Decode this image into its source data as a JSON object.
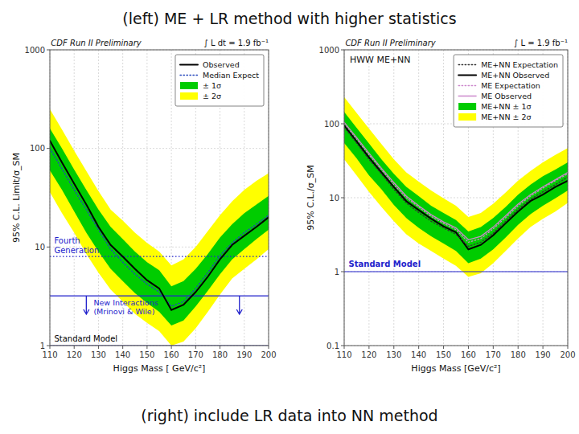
{
  "chart_data": [
    {
      "type": "line",
      "title": "(left) ME + LR method with higher statistics",
      "xlabel": "Higgs Mass [ GeV/c²]",
      "ylabel": "95% C.L. Limit/σ_SM",
      "x": [
        110,
        115,
        120,
        125,
        130,
        135,
        140,
        145,
        150,
        155,
        160,
        165,
        170,
        175,
        180,
        185,
        190,
        195,
        200
      ],
      "series": [
        {
          "name": "Observed",
          "type": "line",
          "color": "#000000",
          "line_style": "solid",
          "values": [
            120,
            72,
            44,
            27,
            16,
            10.5,
            8.0,
            6.0,
            4.6,
            3.8,
            2.3,
            2.6,
            3.5,
            5.0,
            7.5,
            10.5,
            13,
            16,
            20
          ]
        },
        {
          "name": "Median Expect",
          "type": "line",
          "color": "#2244bb",
          "line_style": "dotted",
          "values": [
            100,
            62,
            38,
            24,
            15,
            9.5,
            7.0,
            5.3,
            4.2,
            3.5,
            2.5,
            2.8,
            3.8,
            5.5,
            8.2,
            11,
            14,
            17,
            21
          ]
        },
        {
          "name": "± 1σ",
          "type": "band",
          "color": "#00cc00",
          "upper": [
            160,
            100,
            61,
            38,
            24,
            16,
            12,
            9,
            7,
            5.8,
            4.0,
            4.5,
            6,
            8.5,
            12.5,
            17,
            22,
            27,
            33
          ],
          "lower": [
            60,
            38,
            23,
            14,
            9,
            6,
            4.5,
            3.4,
            2.7,
            2.2,
            1.6,
            1.8,
            2.5,
            3.6,
            5.3,
            7.5,
            9.5,
            12,
            15
          ]
        },
        {
          "name": "± 2σ",
          "type": "band",
          "color": "#ffff00",
          "upper": [
            250,
            155,
            95,
            59,
            37,
            24,
            18.5,
            14,
            11,
            9,
            6.5,
            7.5,
            10,
            14.5,
            21,
            29,
            38,
            47,
            56
          ],
          "lower": [
            36,
            22,
            14,
            8.5,
            5.5,
            3.7,
            2.8,
            2.1,
            1.7,
            1.4,
            1.0,
            1.1,
            1.5,
            2.2,
            3.3,
            4.8,
            6,
            7.5,
            9.5
          ]
        }
      ],
      "reference_lines": [
        {
          "y": 8.0,
          "color": "#2222cc",
          "line_style": "dotted"
        },
        {
          "y": 3.2,
          "color": "#2222cc",
          "line_style": "solid"
        },
        {
          "y": 1.0,
          "color": "#222288",
          "line_style": "solid"
        }
      ],
      "arrows": [
        {
          "x": 125,
          "y_from": 3.2,
          "y_to": 2.08,
          "color": "#2222cc"
        },
        {
          "x": 188,
          "y_from": 3.2,
          "y_to": 2.08,
          "color": "#2222cc"
        }
      ],
      "annotations": [
        {
          "text": "CDF Run II Preliminary"
        },
        {
          "text": "∫ L dt = 1.9 fb⁻¹"
        },
        {
          "text": "Fourth\nGeneration",
          "color": "#2222cc"
        },
        {
          "text": "New Interactions\n(Mrinovi & Wile)",
          "color": "#2222cc"
        },
        {
          "text": "Standard Model",
          "color": "#000000"
        }
      ],
      "xlim": [
        110,
        200
      ],
      "ylim": [
        1,
        1000
      ],
      "xticks": [
        110,
        120,
        130,
        140,
        150,
        160,
        170,
        180,
        190,
        200
      ],
      "yticks": [
        1,
        10,
        100,
        1000
      ],
      "log": "y",
      "grid": true,
      "legend": "upper right"
    },
    {
      "type": "line",
      "title": "(right) include LR data into NN method",
      "xlabel": "Higgs Mass [GeV/c²]",
      "ylabel": "95% C.L./σ_SM",
      "x": [
        110,
        115,
        120,
        125,
        130,
        135,
        140,
        145,
        150,
        155,
        160,
        165,
        170,
        175,
        180,
        185,
        190,
        195,
        200
      ],
      "series": [
        {
          "name": "ME+NN Expectation",
          "type": "line",
          "color": "#333333",
          "line_style": "dotted",
          "values": [
            90,
            55,
            33,
            21,
            13,
            8.5,
            6.3,
            4.8,
            3.9,
            3.2,
            2.2,
            2.5,
            3.3,
            4.8,
            7.0,
            9.5,
            12,
            15,
            19
          ]
        },
        {
          "name": "ME+NN Observed",
          "type": "line",
          "color": "#000000",
          "line_style": "solid",
          "values": [
            95,
            58,
            35,
            22,
            14,
            9.0,
            6.8,
            5.2,
            4.1,
            3.4,
            2.0,
            2.3,
            3.1,
            4.5,
            6.5,
            9.0,
            11,
            14,
            17
          ]
        },
        {
          "name": "ME Expectation",
          "type": "line",
          "color": "#cc88cc",
          "line_style": "dotted",
          "values": [
            100,
            62,
            38,
            24,
            15,
            10,
            7.5,
            5.6,
            4.5,
            3.7,
            2.5,
            2.8,
            3.8,
            5.4,
            7.8,
            10.5,
            13.5,
            17,
            21
          ]
        },
        {
          "name": "ME Observed",
          "type": "line",
          "color": "#cc88cc",
          "line_style": "solid",
          "values": [
            105,
            65,
            40,
            25,
            16,
            10.5,
            7.8,
            5.9,
            4.7,
            3.9,
            2.7,
            3.0,
            4.0,
            5.7,
            8.2,
            11,
            14,
            17.5,
            22
          ]
        },
        {
          "name": "ME+NN ± 1σ",
          "type": "band",
          "color": "#00cc00",
          "upper": [
            145,
            88,
            54,
            33,
            21,
            14,
            10.5,
            7.8,
            6.2,
            5.0,
            3.5,
            4.0,
            5.3,
            7.5,
            11,
            15,
            19.5,
            24,
            30
          ],
          "lower": [
            55,
            34,
            20,
            13,
            8,
            5.3,
            3.9,
            3.0,
            2.4,
            1.9,
            1.3,
            1.5,
            2.0,
            2.9,
            4.3,
            6.0,
            7.8,
            9.8,
            12.5
          ]
        },
        {
          "name": "ME+NN ± 2σ",
          "type": "band",
          "color": "#ffff00",
          "upper": [
            230,
            140,
            86,
            53,
            33,
            22,
            16.5,
            12.5,
            9.8,
            7.8,
            5.5,
            6.2,
            8.3,
            11.8,
            17,
            23,
            30,
            38,
            47
          ],
          "lower": [
            33,
            20,
            12,
            7.5,
            4.8,
            3.2,
            2.4,
            1.9,
            1.5,
            1.2,
            0.85,
            0.95,
            1.3,
            1.9,
            2.8,
            4.0,
            5.2,
            6.5,
            8.5
          ]
        }
      ],
      "reference_lines": [
        {
          "y": 1.0,
          "color": "#2222cc",
          "line_style": "solid"
        }
      ],
      "annotations": [
        {
          "text": "CDF Run II Preliminary"
        },
        {
          "text": "∫ L = 1.9 fb⁻¹"
        },
        {
          "text": "HWW ME+NN"
        },
        {
          "text": "Standard Model",
          "color": "#2222cc"
        }
      ],
      "xlim": [
        110,
        200
      ],
      "ylim": [
        0.1,
        1000
      ],
      "xticks": [
        110,
        120,
        130,
        140,
        150,
        160,
        170,
        180,
        190,
        200
      ],
      "yticks": [
        0.1,
        1,
        10,
        100,
        1000
      ],
      "log": "y",
      "grid": true,
      "legend": "upper right"
    }
  ]
}
